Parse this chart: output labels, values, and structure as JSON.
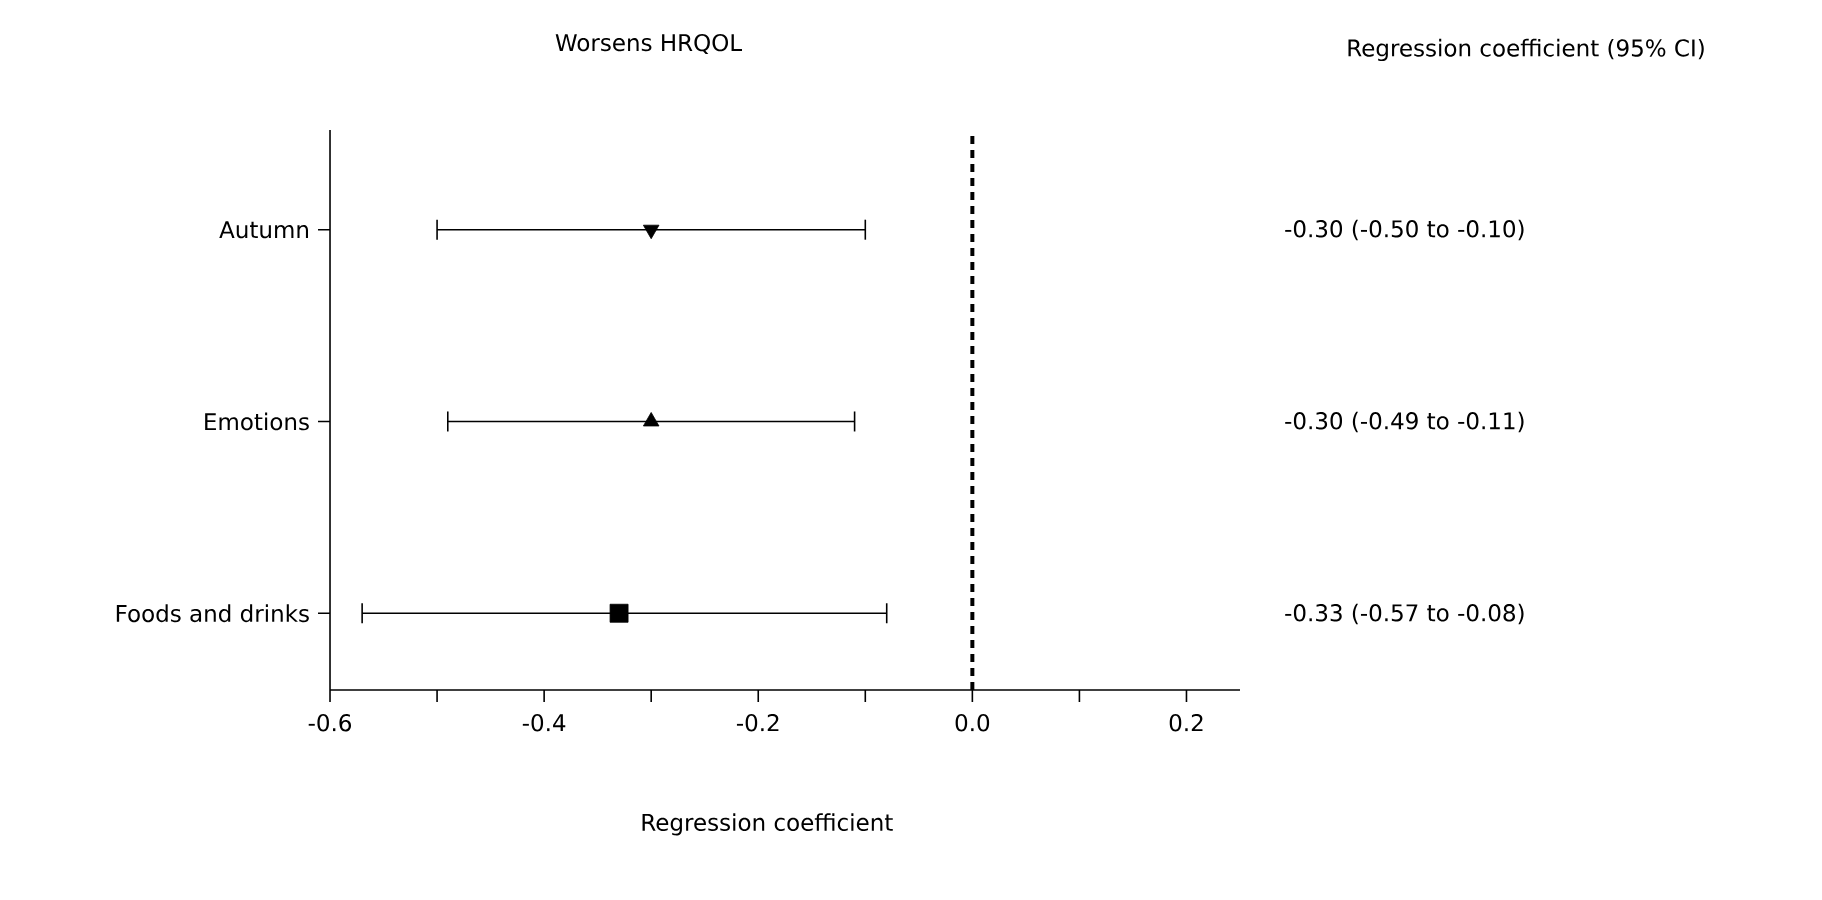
{
  "chart_data": {
    "type": "scatter",
    "orientation": "horizontal",
    "title": "Worsens HRQOL",
    "xlabel": "Regression coefficient",
    "annotations": [
      "Regression coefficient (95% CI)",
      "-0.30 (-0.50 to -0.10)",
      "-0.30 (-0.49 to -0.11)",
      "-0.33 (-0.57 to -0.08)"
    ],
    "categories": [
      "Autumn",
      "Emotions",
      "Foods and drinks"
    ],
    "series": [
      {
        "color": "#000000",
        "marker": "triangle down",
        "values": [
          -0.3,
          null,
          null
        ],
        "errors": [
          [
            -0.5,
            -0.1
          ],
          null,
          null
        ]
      },
      {
        "color": "#000000",
        "marker": "triangle",
        "values": [
          null,
          -0.3,
          null
        ],
        "errors": [
          null,
          [
            -0.49,
            -0.11
          ],
          null
        ]
      },
      {
        "color": "#000000",
        "marker": "square",
        "values": [
          null,
          null,
          -0.33
        ],
        "errors": [
          null,
          null,
          [
            -0.57,
            -0.08
          ]
        ]
      }
    ],
    "xlim": [
      -0.6,
      0.25
    ],
    "xticks": [
      {
        "value": -0.6,
        "label": "-0.6"
      },
      {
        "value": -0.5,
        "label": null
      },
      {
        "value": -0.4,
        "label": "-0.4"
      },
      {
        "value": -0.3,
        "label": null
      },
      {
        "value": -0.2,
        "label": "-0.2"
      },
      {
        "value": -0.1,
        "label": null
      },
      {
        "value": 0.0,
        "label": "0.0"
      },
      {
        "value": 0.1,
        "label": null
      },
      {
        "value": 0.2,
        "label": "0.2"
      }
    ],
    "ref_lines": [
      {
        "axis": "x",
        "value": 0,
        "line_style": "dashed",
        "color": "#000000"
      }
    ],
    "grid": false,
    "legend": false
  }
}
